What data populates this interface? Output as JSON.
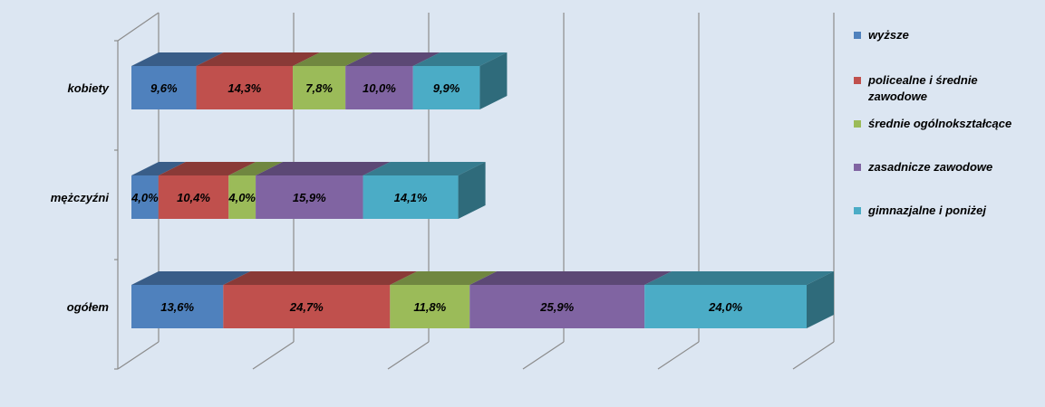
{
  "chart_data": {
    "type": "bar",
    "orientation": "horizontal",
    "stacked": true,
    "style": "3d",
    "categories": [
      "kobiety",
      "mężczyźni",
      "ogółem"
    ],
    "series": [
      {
        "name": "wyższe",
        "values": [
          9.6,
          4.0,
          13.6
        ],
        "labels": [
          "9,6%",
          "4,0%",
          "13,6%"
        ],
        "color": "#4f81bd"
      },
      {
        "name": "policealne i średnie zawodowe",
        "values": [
          14.3,
          10.4,
          24.7
        ],
        "labels": [
          "14,3%",
          "10,4%",
          "24,7%"
        ],
        "color": "#c0504d"
      },
      {
        "name": "średnie ogólnokształcące",
        "values": [
          7.8,
          4.0,
          11.8
        ],
        "labels": [
          "7,8%",
          "4,0%",
          "11,8%"
        ],
        "color": "#9bbb59"
      },
      {
        "name": "zasadnicze zawodowe",
        "values": [
          10.0,
          15.9,
          25.9
        ],
        "labels": [
          "10,0%",
          "15,9%",
          "25,9%"
        ],
        "color": "#8064a2"
      },
      {
        "name": "gimnazjalne i poniżej",
        "values": [
          9.9,
          14.1,
          24.0
        ],
        "labels": [
          "9,9%",
          "14,1%",
          "24,0%"
        ],
        "color": "#4bacc6"
      }
    ],
    "xlim": [
      0,
      100
    ],
    "grid": true,
    "legend_position": "right"
  }
}
